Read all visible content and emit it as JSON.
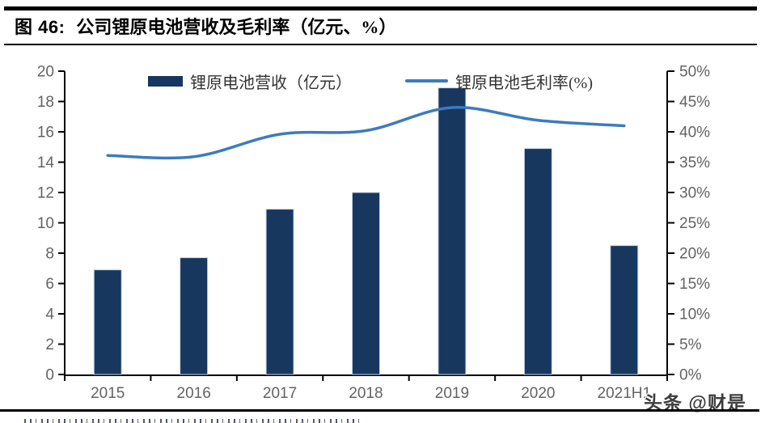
{
  "header": {
    "figure_label": "图 46:",
    "title": "公司锂原电池营收及毛利率（亿元、%）"
  },
  "chart_data": {
    "type": "bar+line combo",
    "categories": [
      "2015",
      "2016",
      "2017",
      "2018",
      "2019",
      "2020",
      "2021H1"
    ],
    "series": [
      {
        "name": "锂原电池营收（亿元）",
        "type": "bar",
        "axis": "left",
        "values": [
          6.9,
          7.7,
          10.9,
          12.0,
          18.9,
          14.9,
          8.5
        ]
      },
      {
        "name": "锂原电池毛利率(%)",
        "type": "line",
        "axis": "right",
        "values": [
          36.1,
          35.9,
          39.6,
          40.2,
          44.0,
          41.9,
          41.0
        ]
      }
    ],
    "left_axis": {
      "min": 0,
      "max": 20,
      "step": 2,
      "suffix": ""
    },
    "right_axis": {
      "min": 0,
      "max": 50,
      "step": 5,
      "suffix": "%"
    },
    "legend_position": "top",
    "grid": false
  },
  "colors": {
    "bar": "#17375E",
    "bar_edge": "#C7D5E8",
    "line": "#3D7BBE",
    "axis": "#000000",
    "tick_label": "#636363"
  },
  "watermark": {
    "text": "头条 @财是"
  }
}
